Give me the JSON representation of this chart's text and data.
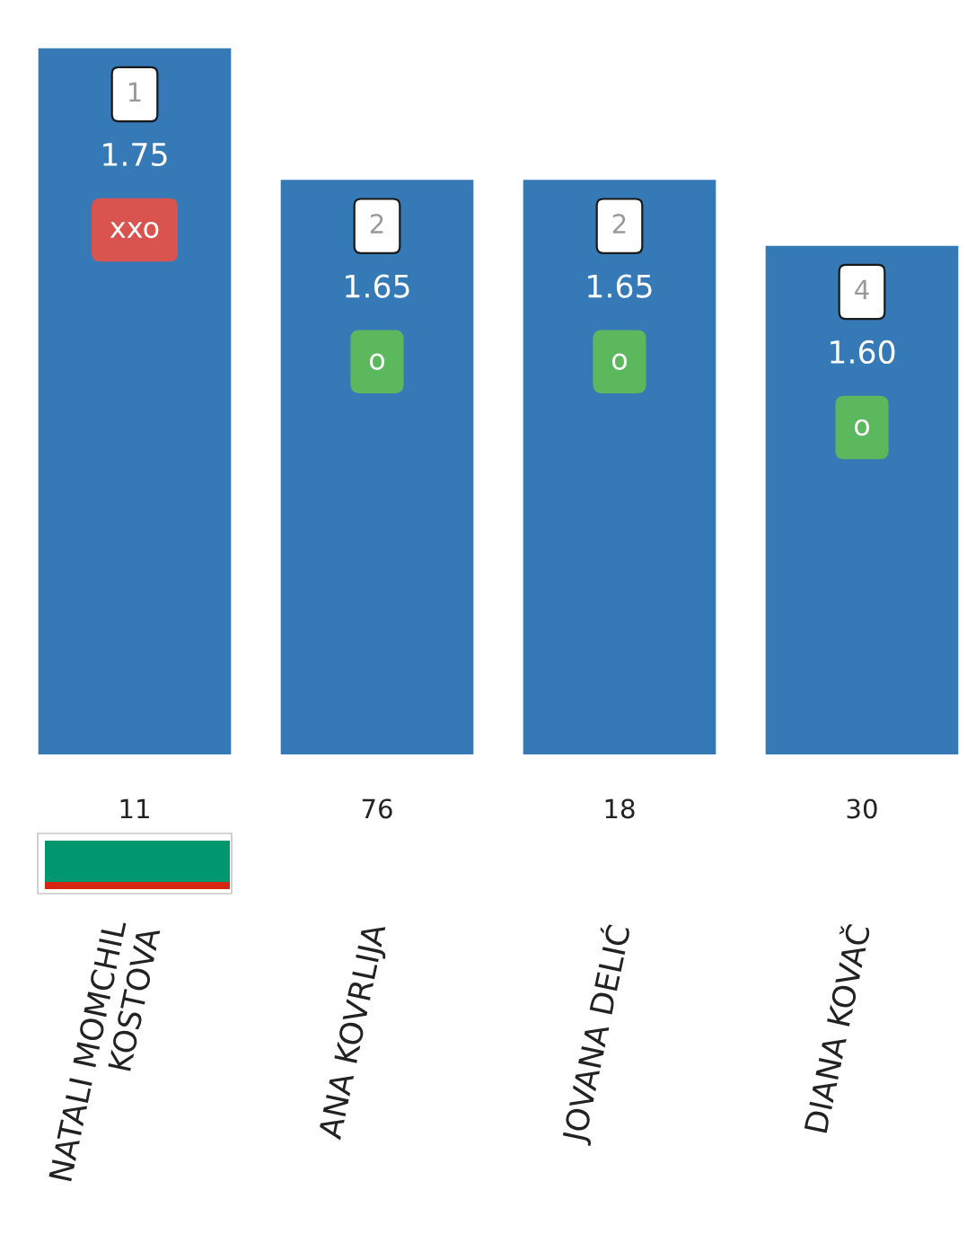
{
  "chart_data": {
    "type": "bar",
    "categories": [
      "NATALI MOMCHIL\nKOSTOVA",
      "ANA KOVRLIJA",
      "JOVANA DELIĆ",
      "DIANA KOVAČ"
    ],
    "values": [
      1.75,
      1.65,
      1.65,
      1.6
    ],
    "value_labels": [
      "1.75",
      "1.65",
      "1.65",
      "1.60"
    ],
    "color": "#3579b7",
    "tick_labels": "x",
    "annotations": [
      {
        "text": "1",
        "x": "NATALI MOMCHIL\nKOSTOVA",
        "y": 1.75
      },
      {
        "text": "2",
        "x": "ANA KOVRLIJA",
        "y": 1.65
      },
      {
        "text": "2",
        "x": "JOVANA DELIĆ",
        "y": 1.65
      },
      {
        "text": "4",
        "x": "DIANA KOVAČ",
        "y": 1.6
      },
      "xxo",
      "o",
      "o",
      "o",
      "11",
      "76",
      "18",
      "30"
    ]
  }
}
